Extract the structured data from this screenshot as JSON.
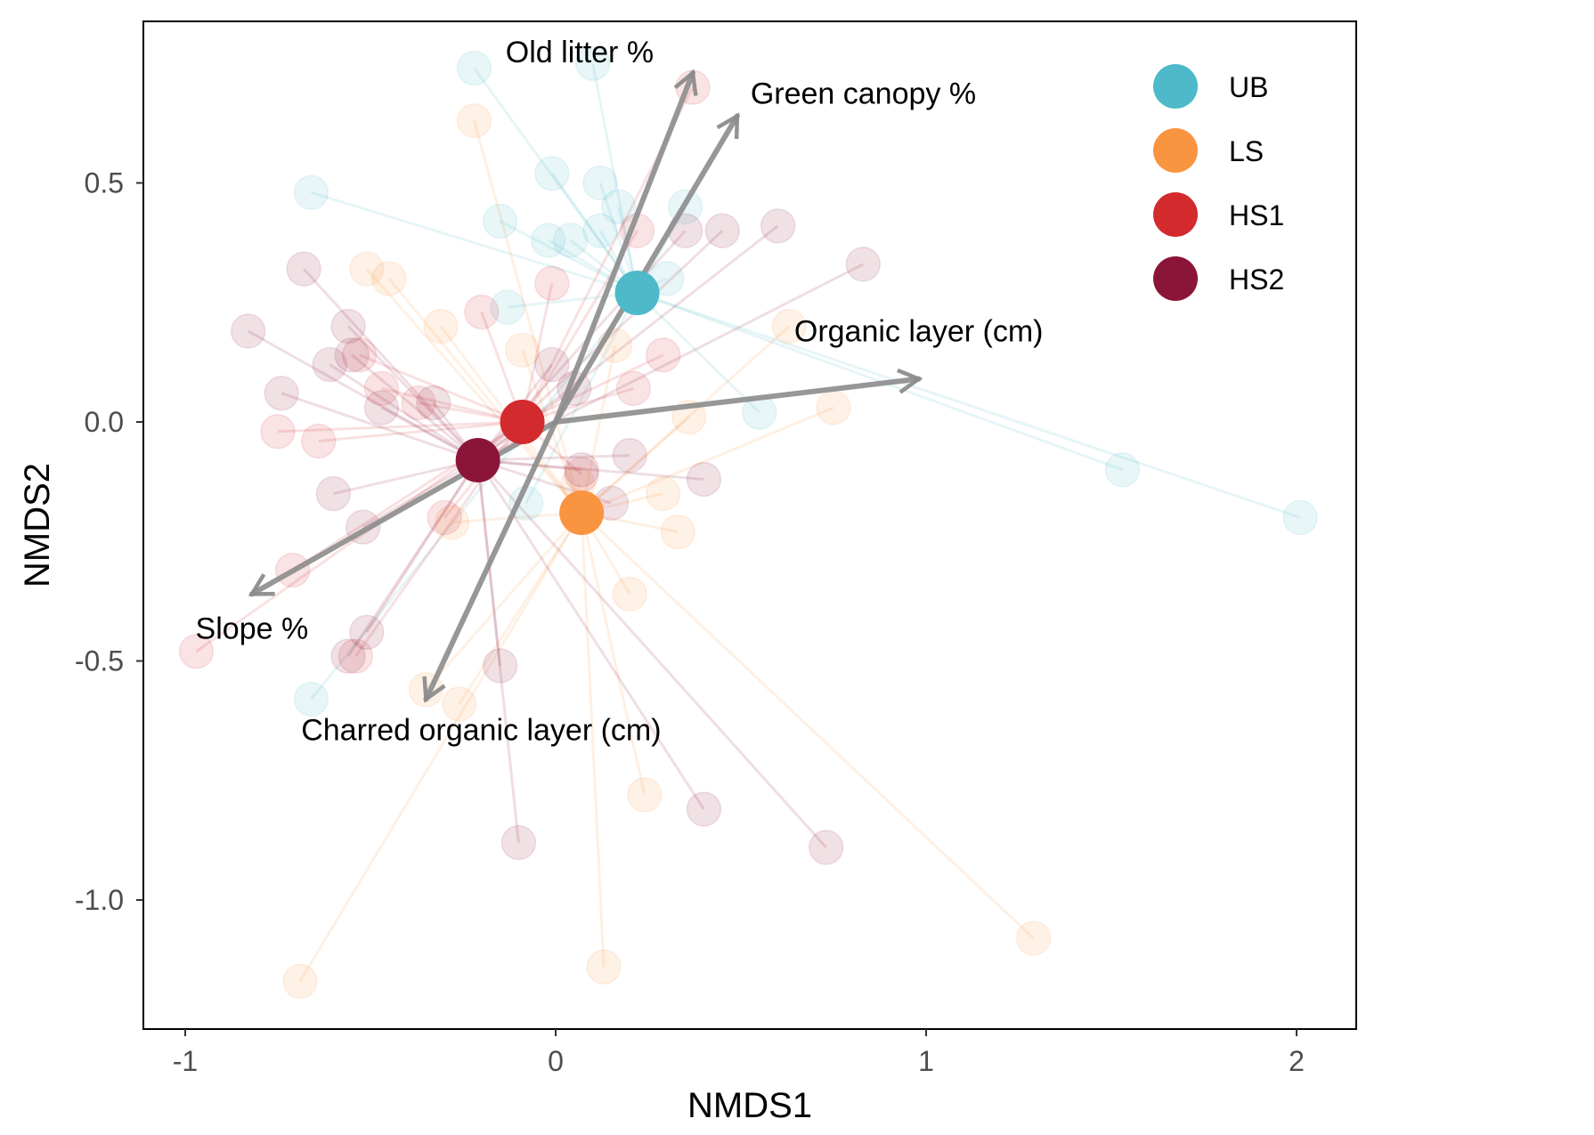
{
  "chart_data": {
    "type": "scatter",
    "subtype": "NMDS ordination with group centroids, spider lines and environmental vectors",
    "xlabel": "NMDS1",
    "ylabel": "NMDS2",
    "xlim": [
      -1.1,
      2.15
    ],
    "ylim": [
      -1.27,
      0.84
    ],
    "xticks": [
      -1,
      0,
      1,
      2
    ],
    "xtick_labels": [
      "-1",
      "0",
      "1",
      "2"
    ],
    "yticks": [
      0.5,
      0.0,
      -0.5,
      -1.0
    ],
    "ytick_labels": [
      "0.5",
      "0.0",
      "-0.5",
      "-1.0"
    ],
    "grid": false,
    "legend_position": "top-right",
    "groups": [
      {
        "name": "UB",
        "color": "#4EB9C8",
        "centroid": [
          0.22,
          0.27
        ],
        "points": [
          [
            -0.22,
            0.74
          ],
          [
            0.1,
            0.75
          ],
          [
            -0.66,
            0.48
          ],
          [
            -0.01,
            0.52
          ],
          [
            0.12,
            0.5
          ],
          [
            0.17,
            0.45
          ],
          [
            -0.15,
            0.42
          ],
          [
            -0.02,
            0.38
          ],
          [
            0.04,
            0.38
          ],
          [
            0.12,
            0.4
          ],
          [
            0.35,
            0.45
          ],
          [
            0.3,
            0.3
          ],
          [
            -0.13,
            0.24
          ],
          [
            0.55,
            0.02
          ],
          [
            1.53,
            -0.1
          ],
          [
            2.01,
            -0.2
          ],
          [
            -0.08,
            -0.17
          ],
          [
            -0.66,
            -0.58
          ]
        ]
      },
      {
        "name": "LS",
        "color": "#F99440",
        "centroid": [
          0.07,
          -0.19
        ],
        "points": [
          [
            -0.22,
            0.63
          ],
          [
            -0.51,
            0.32
          ],
          [
            -0.45,
            0.3
          ],
          [
            -0.31,
            0.2
          ],
          [
            -0.09,
            0.15
          ],
          [
            0.16,
            0.16
          ],
          [
            0.63,
            0.2
          ],
          [
            0.36,
            0.01
          ],
          [
            0.75,
            0.03
          ],
          [
            0.29,
            -0.15
          ],
          [
            0.33,
            -0.23
          ],
          [
            0.06,
            -0.13
          ],
          [
            0.2,
            -0.36
          ],
          [
            -0.28,
            -0.21
          ],
          [
            -0.35,
            -0.56
          ],
          [
            -0.26,
            -0.59
          ],
          [
            0.24,
            -0.78
          ],
          [
            1.29,
            -1.08
          ],
          [
            0.13,
            -1.14
          ],
          [
            -0.69,
            -1.17
          ]
        ]
      },
      {
        "name": "HS1",
        "color": "#D32A2E",
        "centroid": [
          -0.09,
          0.0
        ],
        "points": [
          [
            -0.01,
            0.29
          ],
          [
            -0.2,
            0.23
          ],
          [
            0.22,
            0.4
          ],
          [
            0.37,
            0.7
          ],
          [
            -0.53,
            0.14
          ],
          [
            -0.47,
            0.07
          ],
          [
            -0.37,
            0.04
          ],
          [
            -0.75,
            -0.02
          ],
          [
            -0.64,
            -0.04
          ],
          [
            0.21,
            0.07
          ],
          [
            0.29,
            0.14
          ],
          [
            0.07,
            -0.11
          ],
          [
            -0.3,
            -0.2
          ],
          [
            -0.71,
            -0.31
          ],
          [
            -0.97,
            -0.48
          ],
          [
            -0.54,
            -0.49
          ]
        ]
      },
      {
        "name": "HS2",
        "color": "#8B1538",
        "centroid": [
          -0.21,
          -0.08
        ],
        "points": [
          [
            -0.68,
            0.32
          ],
          [
            -0.83,
            0.19
          ],
          [
            -0.56,
            0.2
          ],
          [
            -0.61,
            0.12
          ],
          [
            -0.55,
            0.14
          ],
          [
            -0.47,
            0.03
          ],
          [
            -0.74,
            0.06
          ],
          [
            -0.33,
            0.04
          ],
          [
            -0.01,
            0.12
          ],
          [
            0.05,
            0.07
          ],
          [
            0.35,
            0.4
          ],
          [
            0.45,
            0.4
          ],
          [
            0.6,
            0.41
          ],
          [
            0.83,
            0.33
          ],
          [
            0.2,
            -0.07
          ],
          [
            0.07,
            -0.1
          ],
          [
            0.4,
            -0.12
          ],
          [
            0.15,
            -0.17
          ],
          [
            -0.6,
            -0.15
          ],
          [
            -0.52,
            -0.22
          ],
          [
            -0.51,
            -0.44
          ],
          [
            -0.56,
            -0.49
          ],
          [
            -0.15,
            -0.51
          ],
          [
            -0.1,
            -0.88
          ],
          [
            0.4,
            -0.81
          ],
          [
            0.73,
            -0.89
          ]
        ]
      }
    ],
    "vectors": [
      {
        "label": "Old litter %",
        "end": [
          0.37,
          0.73
        ]
      },
      {
        "label": "Green canopy %",
        "end": [
          0.49,
          0.64
        ]
      },
      {
        "label": "Organic layer (cm)",
        "end": [
          0.98,
          0.09
        ]
      },
      {
        "label": "Slope %",
        "end": [
          -0.82,
          -0.36
        ]
      },
      {
        "label": "Charred organic layer (cm)",
        "end": [
          -0.35,
          -0.58
        ]
      }
    ],
    "vector_origin": [
      0.0,
      0.0
    ],
    "vector_color": "#8C8C8C"
  }
}
